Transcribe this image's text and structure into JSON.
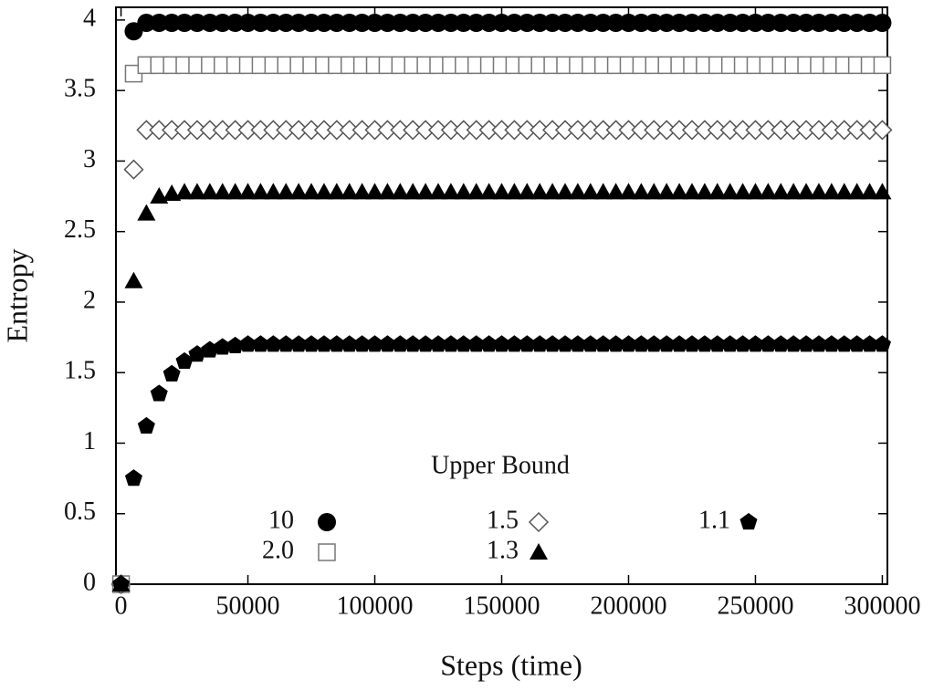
{
  "chart_data": {
    "type": "scatter",
    "x_label": "Steps (time)",
    "y_label": "Entropy",
    "legend_title": "Upper Bound",
    "xlim": [
      -2000,
      302000
    ],
    "ylim": [
      0,
      4.09
    ],
    "xticks": [
      0,
      50000,
      100000,
      150000,
      200000,
      250000,
      300000
    ],
    "yticks": [
      0,
      0.5,
      1,
      1.5,
      2,
      2.5,
      3,
      3.5,
      4
    ],
    "x": [
      0,
      5000,
      10000,
      15000,
      20000,
      25000,
      30000,
      35000,
      40000,
      45000,
      50000,
      55000,
      60000,
      65000,
      70000,
      75000,
      80000,
      85000,
      90000,
      95000,
      100000,
      105000,
      110000,
      115000,
      120000,
      125000,
      130000,
      135000,
      140000,
      145000,
      150000,
      155000,
      160000,
      165000,
      170000,
      175000,
      180000,
      185000,
      190000,
      195000,
      200000,
      205000,
      210000,
      215000,
      220000,
      225000,
      230000,
      235000,
      240000,
      245000,
      250000,
      255000,
      260000,
      265000,
      270000,
      275000,
      280000,
      285000,
      290000,
      295000,
      300000
    ],
    "series": [
      {
        "name": "10",
        "marker": "circle",
        "color": "#000000",
        "values": [
          0,
          3.92,
          3.98,
          3.98,
          3.98,
          3.98,
          3.98,
          3.98,
          3.98,
          3.98,
          3.98,
          3.98,
          3.98,
          3.98,
          3.98,
          3.98,
          3.98,
          3.98,
          3.98,
          3.98,
          3.98,
          3.98,
          3.98,
          3.98,
          3.98,
          3.98,
          3.98,
          3.98,
          3.98,
          3.98,
          3.98,
          3.98,
          3.98,
          3.98,
          3.98,
          3.98,
          3.98,
          3.98,
          3.98,
          3.98,
          3.98,
          3.98,
          3.98,
          3.98,
          3.98,
          3.98,
          3.98,
          3.98,
          3.98,
          3.98,
          3.98,
          3.98,
          3.98,
          3.98,
          3.98,
          3.98,
          3.98,
          3.98,
          3.98,
          3.98,
          3.98
        ]
      },
      {
        "name": "2.0",
        "marker": "square",
        "color": "#777777",
        "values": [
          0,
          3.62,
          3.68,
          3.68,
          3.68,
          3.68,
          3.68,
          3.68,
          3.68,
          3.68,
          3.68,
          3.68,
          3.68,
          3.68,
          3.68,
          3.68,
          3.68,
          3.68,
          3.68,
          3.68,
          3.68,
          3.68,
          3.68,
          3.68,
          3.68,
          3.68,
          3.68,
          3.68,
          3.68,
          3.68,
          3.68,
          3.68,
          3.68,
          3.68,
          3.68,
          3.68,
          3.68,
          3.68,
          3.68,
          3.68,
          3.68,
          3.68,
          3.68,
          3.68,
          3.68,
          3.68,
          3.68,
          3.68,
          3.68,
          3.68,
          3.68,
          3.68,
          3.68,
          3.68,
          3.68,
          3.68,
          3.68,
          3.68,
          3.68,
          3.68,
          3.68
        ]
      },
      {
        "name": "1.5",
        "marker": "diamond",
        "color": "#555555",
        "values": [
          0,
          2.94,
          3.22,
          3.22,
          3.22,
          3.22,
          3.22,
          3.22,
          3.22,
          3.22,
          3.22,
          3.22,
          3.22,
          3.22,
          3.22,
          3.22,
          3.22,
          3.22,
          3.22,
          3.22,
          3.22,
          3.22,
          3.22,
          3.22,
          3.22,
          3.22,
          3.22,
          3.22,
          3.22,
          3.22,
          3.22,
          3.22,
          3.22,
          3.22,
          3.22,
          3.22,
          3.22,
          3.22,
          3.22,
          3.22,
          3.22,
          3.22,
          3.22,
          3.22,
          3.22,
          3.22,
          3.22,
          3.22,
          3.22,
          3.22,
          3.22,
          3.22,
          3.22,
          3.22,
          3.22,
          3.22,
          3.22,
          3.22,
          3.22,
          3.22,
          3.22
        ]
      },
      {
        "name": "1.3",
        "marker": "triangle",
        "color": "#000000",
        "values": [
          0,
          2.15,
          2.63,
          2.75,
          2.77,
          2.78,
          2.78,
          2.78,
          2.78,
          2.78,
          2.78,
          2.78,
          2.78,
          2.78,
          2.78,
          2.78,
          2.78,
          2.78,
          2.78,
          2.78,
          2.78,
          2.78,
          2.78,
          2.78,
          2.78,
          2.78,
          2.78,
          2.78,
          2.78,
          2.78,
          2.78,
          2.78,
          2.78,
          2.78,
          2.78,
          2.78,
          2.78,
          2.78,
          2.78,
          2.78,
          2.78,
          2.78,
          2.78,
          2.78,
          2.78,
          2.78,
          2.78,
          2.78,
          2.78,
          2.78,
          2.78,
          2.78,
          2.78,
          2.78,
          2.78,
          2.78,
          2.78,
          2.78,
          2.78,
          2.78,
          2.78
        ]
      },
      {
        "name": "1.1",
        "marker": "pentagon",
        "color": "#000000",
        "values": [
          0,
          0.75,
          1.12,
          1.35,
          1.49,
          1.58,
          1.63,
          1.66,
          1.68,
          1.69,
          1.7,
          1.7,
          1.7,
          1.7,
          1.7,
          1.7,
          1.7,
          1.7,
          1.7,
          1.7,
          1.7,
          1.7,
          1.7,
          1.7,
          1.7,
          1.7,
          1.7,
          1.7,
          1.7,
          1.7,
          1.7,
          1.7,
          1.7,
          1.7,
          1.7,
          1.7,
          1.7,
          1.7,
          1.7,
          1.7,
          1.7,
          1.7,
          1.7,
          1.7,
          1.7,
          1.7,
          1.7,
          1.7,
          1.7,
          1.7,
          1.7,
          1.7,
          1.7,
          1.7,
          1.7,
          1.7,
          1.7,
          1.7,
          1.7,
          1.7,
          1.7
        ]
      }
    ]
  }
}
